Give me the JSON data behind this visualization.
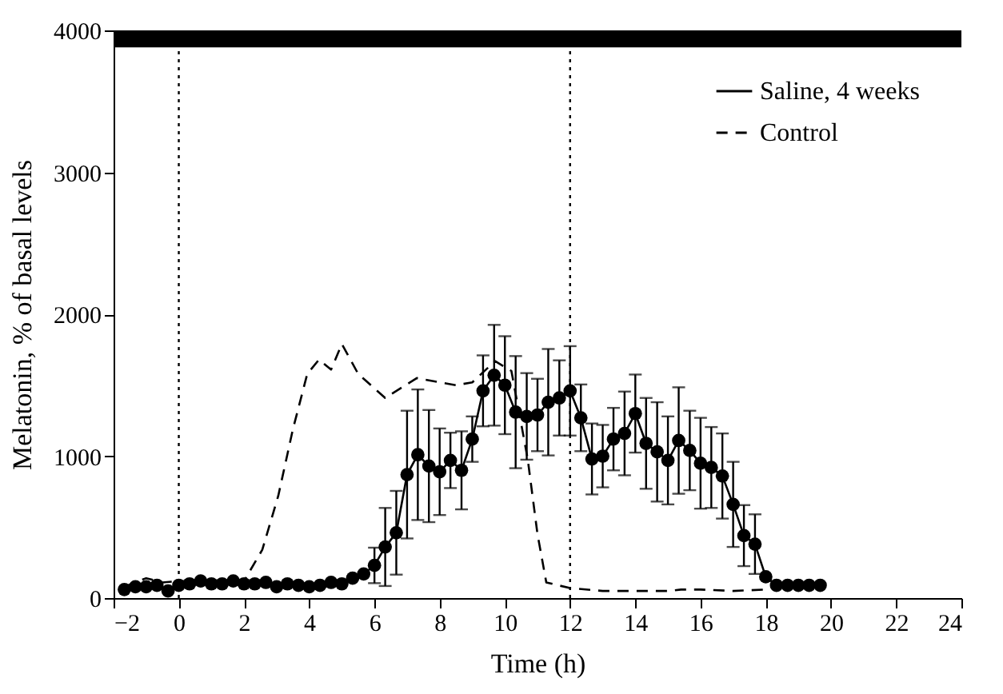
{
  "chart_data": {
    "type": "line",
    "xlabel": "Time (h)",
    "ylabel": "Melatonin, % of basal levels",
    "xlim": [
      -2,
      24
    ],
    "xticks": [
      -2,
      0,
      2,
      4,
      6,
      8,
      10,
      12,
      14,
      16,
      18,
      20,
      22,
      24
    ],
    "ylim": [
      0,
      4000
    ],
    "yticks": [
      0,
      1000,
      2000,
      3000,
      4000
    ],
    "legend": "top right",
    "grid": false,
    "series": [
      {
        "name": "Saline, 4 weeks",
        "color": "#000000",
        "marker": "circle",
        "line_style": "solid",
        "x": [
          -1.67,
          -1.33,
          -1,
          -0.67,
          -0.33,
          0,
          0.33,
          0.67,
          1,
          1.33,
          1.67,
          2,
          2.33,
          2.67,
          3,
          3.33,
          3.67,
          4,
          4.33,
          4.67,
          5,
          5.33,
          5.67,
          6,
          6.33,
          6.67,
          7,
          7.33,
          7.67,
          8,
          8.33,
          8.67,
          9,
          9.33,
          9.67,
          10,
          10.33,
          10.67,
          11,
          11.33,
          11.67,
          12,
          12.33,
          12.67,
          13,
          13.33,
          13.67,
          14,
          14.33,
          14.67,
          15,
          15.33,
          15.67,
          16,
          16.33,
          16.67,
          17,
          17.33,
          17.67,
          18,
          18.33,
          18.67,
          19,
          19.33,
          19.67
        ],
        "values": [
          60,
          80,
          80,
          90,
          50,
          90,
          100,
          120,
          100,
          100,
          120,
          100,
          100,
          110,
          80,
          100,
          90,
          80,
          90,
          110,
          100,
          140,
          170,
          230,
          360,
          460,
          870,
          1010,
          930,
          890,
          970,
          900,
          1120,
          1460,
          1570,
          1500,
          1310,
          1280,
          1290,
          1380,
          1410,
          1460,
          1270,
          980,
          1000,
          1120,
          1160,
          1300,
          1090,
          1030,
          970,
          1110,
          1040,
          950,
          920,
          860,
          660,
          440,
          380,
          150,
          90,
          90,
          90,
          90,
          90
        ],
        "errors": [
          null,
          null,
          null,
          null,
          null,
          null,
          null,
          null,
          null,
          null,
          null,
          null,
          null,
          null,
          null,
          null,
          null,
          null,
          null,
          null,
          null,
          null,
          null,
          125,
          275,
          295,
          450,
          460,
          395,
          305,
          195,
          275,
          160,
          250,
          355,
          345,
          395,
          305,
          255,
          375,
          265,
          315,
          235,
          250,
          220,
          220,
          295,
          275,
          320,
          350,
          310,
          375,
          280,
          320,
          285,
          300,
          300,
          215,
          210,
          null,
          null,
          null,
          null,
          null,
          null
        ]
      },
      {
        "name": "Control",
        "color": "#000000",
        "marker": "none",
        "line_style": "dashed",
        "x": [
          -1.67,
          -1,
          -0.5,
          0,
          1,
          2,
          2.56,
          3.05,
          3.5,
          3.94,
          4.3,
          4.67,
          5,
          5.5,
          6.33,
          7.3,
          8,
          8.5,
          9,
          9.7,
          10.2,
          10.7,
          11,
          11.27,
          12,
          13,
          14,
          15,
          15.4,
          16,
          17,
          18,
          18.3
        ],
        "values": [
          80,
          140,
          110,
          120,
          120,
          120,
          340,
          720,
          1190,
          1580,
          1680,
          1610,
          1790,
          1580,
          1410,
          1550,
          1520,
          1500,
          1520,
          1670,
          1600,
          980,
          450,
          110,
          70,
          50,
          50,
          50,
          60,
          60,
          50,
          60,
          90
        ]
      }
    ],
    "ref_lines": [
      {
        "axis": "x",
        "value": 0,
        "line_style": "dotted",
        "color": "#000000"
      },
      {
        "axis": "x",
        "value": 12,
        "line_style": "dotted",
        "color": "#000000"
      }
    ],
    "bands": [
      {
        "axis": "y",
        "from": 3880,
        "to": 4000,
        "color": "#000000"
      }
    ]
  }
}
